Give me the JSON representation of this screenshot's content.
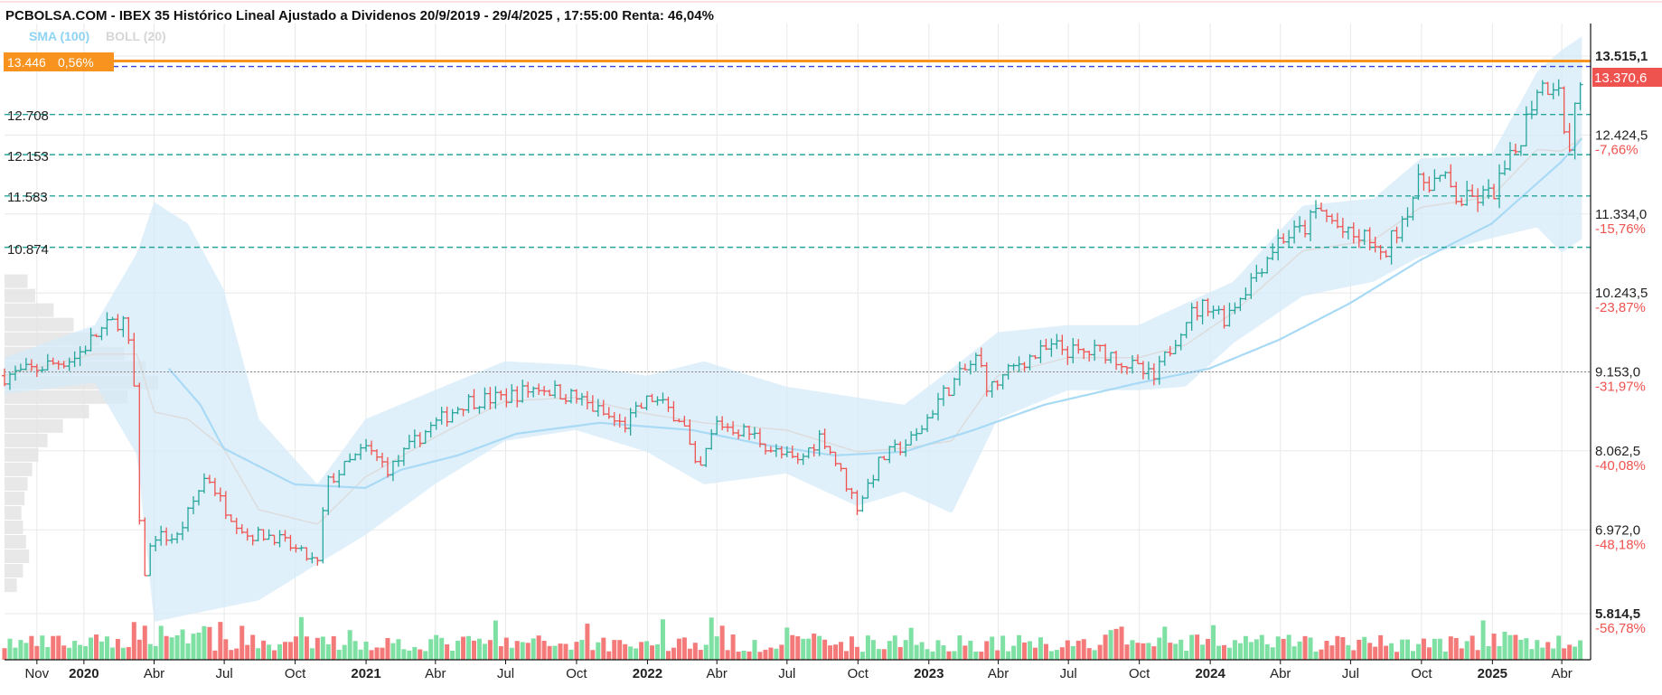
{
  "header": {
    "title": "PCBOLSA.COM - IBEX 35 Histórico Lineal Ajustado a Dividenos 20/9/2019 - 29/4/2025 , 17:55:00 Renta: 46,04%"
  },
  "legend": {
    "sma_label": "SMA (100)",
    "boll_label": "BOLL (20)",
    "sma_color": "#8fd3f4",
    "boll_color": "#d9d9d9"
  },
  "price_badge": {
    "value": "13.446",
    "change": "0,56%",
    "color": "#f7931e"
  },
  "last_price_label": {
    "value": "13.370,6",
    "color": "#ef5350"
  },
  "colors": {
    "up": "#26a69a",
    "down": "#ef5350",
    "vol_up": "#7fe0a4",
    "vol_down": "#f47a7a",
    "band_fill": "#d6ebfa",
    "sma": "#a8daf5",
    "boll_mid": "#dcdcdc",
    "support": "#26a69a",
    "last_line": "#3344dd",
    "resistance": "#f7931e",
    "grid": "#e8e8e8",
    "axis": "#111111",
    "pct_negative": "#ef5350"
  },
  "chart_data": {
    "type": "line",
    "title": "IBEX 35 Histórico Lineal Ajustado a Dividenos 20/9/2019 - 29/4/2025",
    "period": [
      "2019-09-20",
      "2025-04-29"
    ],
    "y_axis": {
      "side": "right",
      "range": [
        5700,
        13600
      ],
      "ticks": [
        {
          "value": 13515.1,
          "label": "13.515,1",
          "pct": ""
        },
        {
          "value": 12424.5,
          "label": "12.424,5",
          "pct": "-7,66%"
        },
        {
          "value": 11334.0,
          "label": "11.334,0",
          "pct": "-15,76%"
        },
        {
          "value": 10243.5,
          "label": "10.243,5",
          "pct": "-23,87%"
        },
        {
          "value": 9153.0,
          "label": "9.153,0",
          "pct": "-31,97%"
        },
        {
          "value": 8062.5,
          "label": "8.062,5",
          "pct": "-40,08%"
        },
        {
          "value": 6972.0,
          "label": "6.972,0",
          "pct": "-48,18%"
        },
        {
          "value": 5814.5,
          "label": "5.814,5",
          "pct": "-56,78%"
        }
      ]
    },
    "x_axis": {
      "labels": [
        {
          "date": "2019-11-01",
          "label": "Nov",
          "bold": false
        },
        {
          "date": "2020-01-01",
          "label": "2020",
          "bold": true
        },
        {
          "date": "2020-04-01",
          "label": "Abr",
          "bold": false
        },
        {
          "date": "2020-07-01",
          "label": "Jul",
          "bold": false
        },
        {
          "date": "2020-10-01",
          "label": "Oct",
          "bold": false
        },
        {
          "date": "2021-01-01",
          "label": "2021",
          "bold": true
        },
        {
          "date": "2021-04-01",
          "label": "Abr",
          "bold": false
        },
        {
          "date": "2021-07-01",
          "label": "Jul",
          "bold": false
        },
        {
          "date": "2021-10-01",
          "label": "Oct",
          "bold": false
        },
        {
          "date": "2022-01-01",
          "label": "2022",
          "bold": true
        },
        {
          "date": "2022-04-01",
          "label": "Abr",
          "bold": false
        },
        {
          "date": "2022-07-01",
          "label": "Jul",
          "bold": false
        },
        {
          "date": "2022-10-01",
          "label": "Oct",
          "bold": false
        },
        {
          "date": "2023-01-01",
          "label": "2023",
          "bold": true
        },
        {
          "date": "2023-04-01",
          "label": "Abr",
          "bold": false
        },
        {
          "date": "2023-07-01",
          "label": "Jul",
          "bold": false
        },
        {
          "date": "2023-10-01",
          "label": "Oct",
          "bold": false
        },
        {
          "date": "2024-01-01",
          "label": "2024",
          "bold": true
        },
        {
          "date": "2024-04-01",
          "label": "Abr",
          "bold": false
        },
        {
          "date": "2024-07-01",
          "label": "Jul",
          "bold": false
        },
        {
          "date": "2024-10-01",
          "label": "Oct",
          "bold": false
        },
        {
          "date": "2025-01-01",
          "label": "2025",
          "bold": true
        },
        {
          "date": "2025-04-01",
          "label": "Abr",
          "bold": false
        }
      ]
    },
    "horizontal_levels": [
      {
        "value": 13446,
        "label": "13.446",
        "kind": "resistance"
      },
      {
        "value": 13370.6,
        "label": "",
        "kind": "last"
      },
      {
        "value": 12708,
        "label": "12.708",
        "kind": "support"
      },
      {
        "value": 12153,
        "label": "12.153",
        "kind": "support"
      },
      {
        "value": 11583,
        "label": "11.583",
        "kind": "support"
      },
      {
        "value": 10874,
        "label": "10.874",
        "kind": "support"
      }
    ],
    "reference_line": 9153,
    "price_anchors": [
      [
        "2019-09-20",
        9100
      ],
      [
        "2019-10-15",
        9150
      ],
      [
        "2019-11-15",
        9250
      ],
      [
        "2019-12-20",
        9350
      ],
      [
        "2020-01-20",
        9700
      ],
      [
        "2020-02-20",
        9900
      ],
      [
        "2020-03-05",
        9200
      ],
      [
        "2020-03-16",
        6200
      ],
      [
        "2020-03-31",
        6900
      ],
      [
        "2020-04-30",
        6850
      ],
      [
        "2020-06-08",
        7750
      ],
      [
        "2020-06-30",
        7300
      ],
      [
        "2020-07-31",
        6900
      ],
      [
        "2020-09-01",
        6900
      ],
      [
        "2020-10-30",
        6500
      ],
      [
        "2020-11-10",
        7600
      ],
      [
        "2020-12-31",
        8100
      ],
      [
        "2021-01-31",
        7800
      ],
      [
        "2021-03-15",
        8300
      ],
      [
        "2021-05-10",
        8750
      ],
      [
        "2021-06-30",
        8800
      ],
      [
        "2021-08-13",
        8950
      ],
      [
        "2021-09-30",
        8800
      ],
      [
        "2021-11-30",
        8400
      ],
      [
        "2022-01-05",
        8800
      ],
      [
        "2022-02-15",
        8500
      ],
      [
        "2022-03-07",
        7700
      ],
      [
        "2022-03-31",
        8450
      ],
      [
        "2022-05-15",
        8300
      ],
      [
        "2022-06-15",
        8050
      ],
      [
        "2022-07-15",
        7900
      ],
      [
        "2022-08-15",
        8300
      ],
      [
        "2022-09-30",
        7300
      ],
      [
        "2022-10-31",
        7950
      ],
      [
        "2022-12-15",
        8250
      ],
      [
        "2023-01-15",
        8800
      ],
      [
        "2023-03-05",
        9350
      ],
      [
        "2023-03-20",
        8900
      ],
      [
        "2023-04-30",
        9300
      ],
      [
        "2023-06-15",
        9500
      ],
      [
        "2023-07-15",
        9400
      ],
      [
        "2023-08-15",
        9450
      ],
      [
        "2023-10-20",
        9050
      ],
      [
        "2023-11-30",
        9900
      ],
      [
        "2023-12-29",
        10100
      ],
      [
        "2024-01-20",
        9900
      ],
      [
        "2024-03-31",
        11000
      ],
      [
        "2024-04-30",
        11100
      ],
      [
        "2024-05-20",
        11400
      ],
      [
        "2024-06-30",
        11000
      ],
      [
        "2024-07-31",
        11000
      ],
      [
        "2024-08-05",
        10600
      ],
      [
        "2024-09-30",
        11800
      ],
      [
        "2024-10-31",
        11800
      ],
      [
        "2024-11-19",
        11500
      ],
      [
        "2024-12-31",
        11600
      ],
      [
        "2025-01-31",
        12200
      ],
      [
        "2025-02-28",
        13100
      ],
      [
        "2025-03-10",
        13100
      ],
      [
        "2025-03-31",
        13200
      ],
      [
        "2025-04-07",
        11800
      ],
      [
        "2025-04-15",
        12700
      ],
      [
        "2025-04-29",
        13370
      ]
    ],
    "sma_anchors": [
      [
        "2020-04-20",
        9200
      ],
      [
        "2020-05-31",
        8700
      ],
      [
        "2020-06-30",
        8100
      ],
      [
        "2020-09-30",
        7600
      ],
      [
        "2020-12-31",
        7550
      ],
      [
        "2021-02-15",
        7800
      ],
      [
        "2021-04-30",
        8000
      ],
      [
        "2021-07-15",
        8300
      ],
      [
        "2021-10-31",
        8450
      ],
      [
        "2022-02-28",
        8350
      ],
      [
        "2022-05-31",
        8150
      ],
      [
        "2022-08-31",
        8000
      ],
      [
        "2022-11-30",
        8050
      ],
      [
        "2023-02-28",
        8350
      ],
      [
        "2023-05-31",
        8700
      ],
      [
        "2023-09-30",
        9000
      ],
      [
        "2023-12-31",
        9200
      ],
      [
        "2024-03-31",
        9600
      ],
      [
        "2024-06-30",
        10100
      ],
      [
        "2024-09-30",
        10700
      ],
      [
        "2024-12-31",
        11200
      ],
      [
        "2025-03-31",
        12050
      ],
      [
        "2025-04-29",
        12400
      ]
    ],
    "band_anchors": [
      [
        "2019-09-20",
        9350,
        8850
      ],
      [
        "2020-01-15",
        9800,
        9000
      ],
      [
        "2020-03-10",
        10800,
        8000
      ],
      [
        "2020-04-01",
        11500,
        5700
      ],
      [
        "2020-05-15",
        11200,
        5800
      ],
      [
        "2020-06-30",
        10300,
        5900
      ],
      [
        "2020-08-15",
        8500,
        6000
      ],
      [
        "2020-10-30",
        7600,
        6500
      ],
      [
        "2020-12-31",
        8500,
        6900
      ],
      [
        "2021-03-31",
        8900,
        7600
      ],
      [
        "2021-06-30",
        9300,
        8200
      ],
      [
        "2021-09-30",
        9250,
        8350
      ],
      [
        "2021-12-31",
        9100,
        8050
      ],
      [
        "2022-03-15",
        9300,
        7600
      ],
      [
        "2022-06-30",
        8950,
        7750
      ],
      [
        "2022-09-30",
        8800,
        7300
      ],
      [
        "2022-11-30",
        8700,
        7500
      ],
      [
        "2023-01-31",
        9200,
        7200
      ],
      [
        "2023-03-31",
        9700,
        8500
      ],
      [
        "2023-06-30",
        9800,
        8900
      ],
      [
        "2023-09-30",
        9800,
        8900
      ],
      [
        "2023-11-30",
        10100,
        8950
      ],
      [
        "2024-01-31",
        10400,
        9550
      ],
      [
        "2024-04-30",
        11450,
        10200
      ],
      [
        "2024-07-31",
        11550,
        10400
      ],
      [
        "2024-09-30",
        12100,
        10750
      ],
      [
        "2024-12-31",
        12150,
        11000
      ],
      [
        "2025-02-28",
        13300,
        11150
      ],
      [
        "2025-04-01",
        13600,
        10800
      ],
      [
        "2025-04-29",
        13800,
        11000
      ]
    ],
    "volume_profile": [
      {
        "price": 10400,
        "weight": 0.15
      },
      {
        "price": 10200,
        "weight": 0.2
      },
      {
        "price": 10000,
        "weight": 0.32
      },
      {
        "price": 9800,
        "weight": 0.45
      },
      {
        "price": 9600,
        "weight": 0.62
      },
      {
        "price": 9400,
        "weight": 0.78
      },
      {
        "price": 9200,
        "weight": 0.92
      },
      {
        "price": 9000,
        "weight": 1.0
      },
      {
        "price": 8800,
        "weight": 0.8
      },
      {
        "price": 8600,
        "weight": 0.55
      },
      {
        "price": 8400,
        "weight": 0.38
      },
      {
        "price": 8200,
        "weight": 0.28
      },
      {
        "price": 8000,
        "weight": 0.22
      },
      {
        "price": 7800,
        "weight": 0.18
      },
      {
        "price": 7600,
        "weight": 0.15
      },
      {
        "price": 7400,
        "weight": 0.13
      },
      {
        "price": 7200,
        "weight": 0.11
      },
      {
        "price": 7000,
        "weight": 0.12
      },
      {
        "price": 6800,
        "weight": 0.14
      },
      {
        "price": 6600,
        "weight": 0.16
      },
      {
        "price": 6400,
        "weight": 0.12
      },
      {
        "price": 6200,
        "weight": 0.08
      }
    ]
  }
}
